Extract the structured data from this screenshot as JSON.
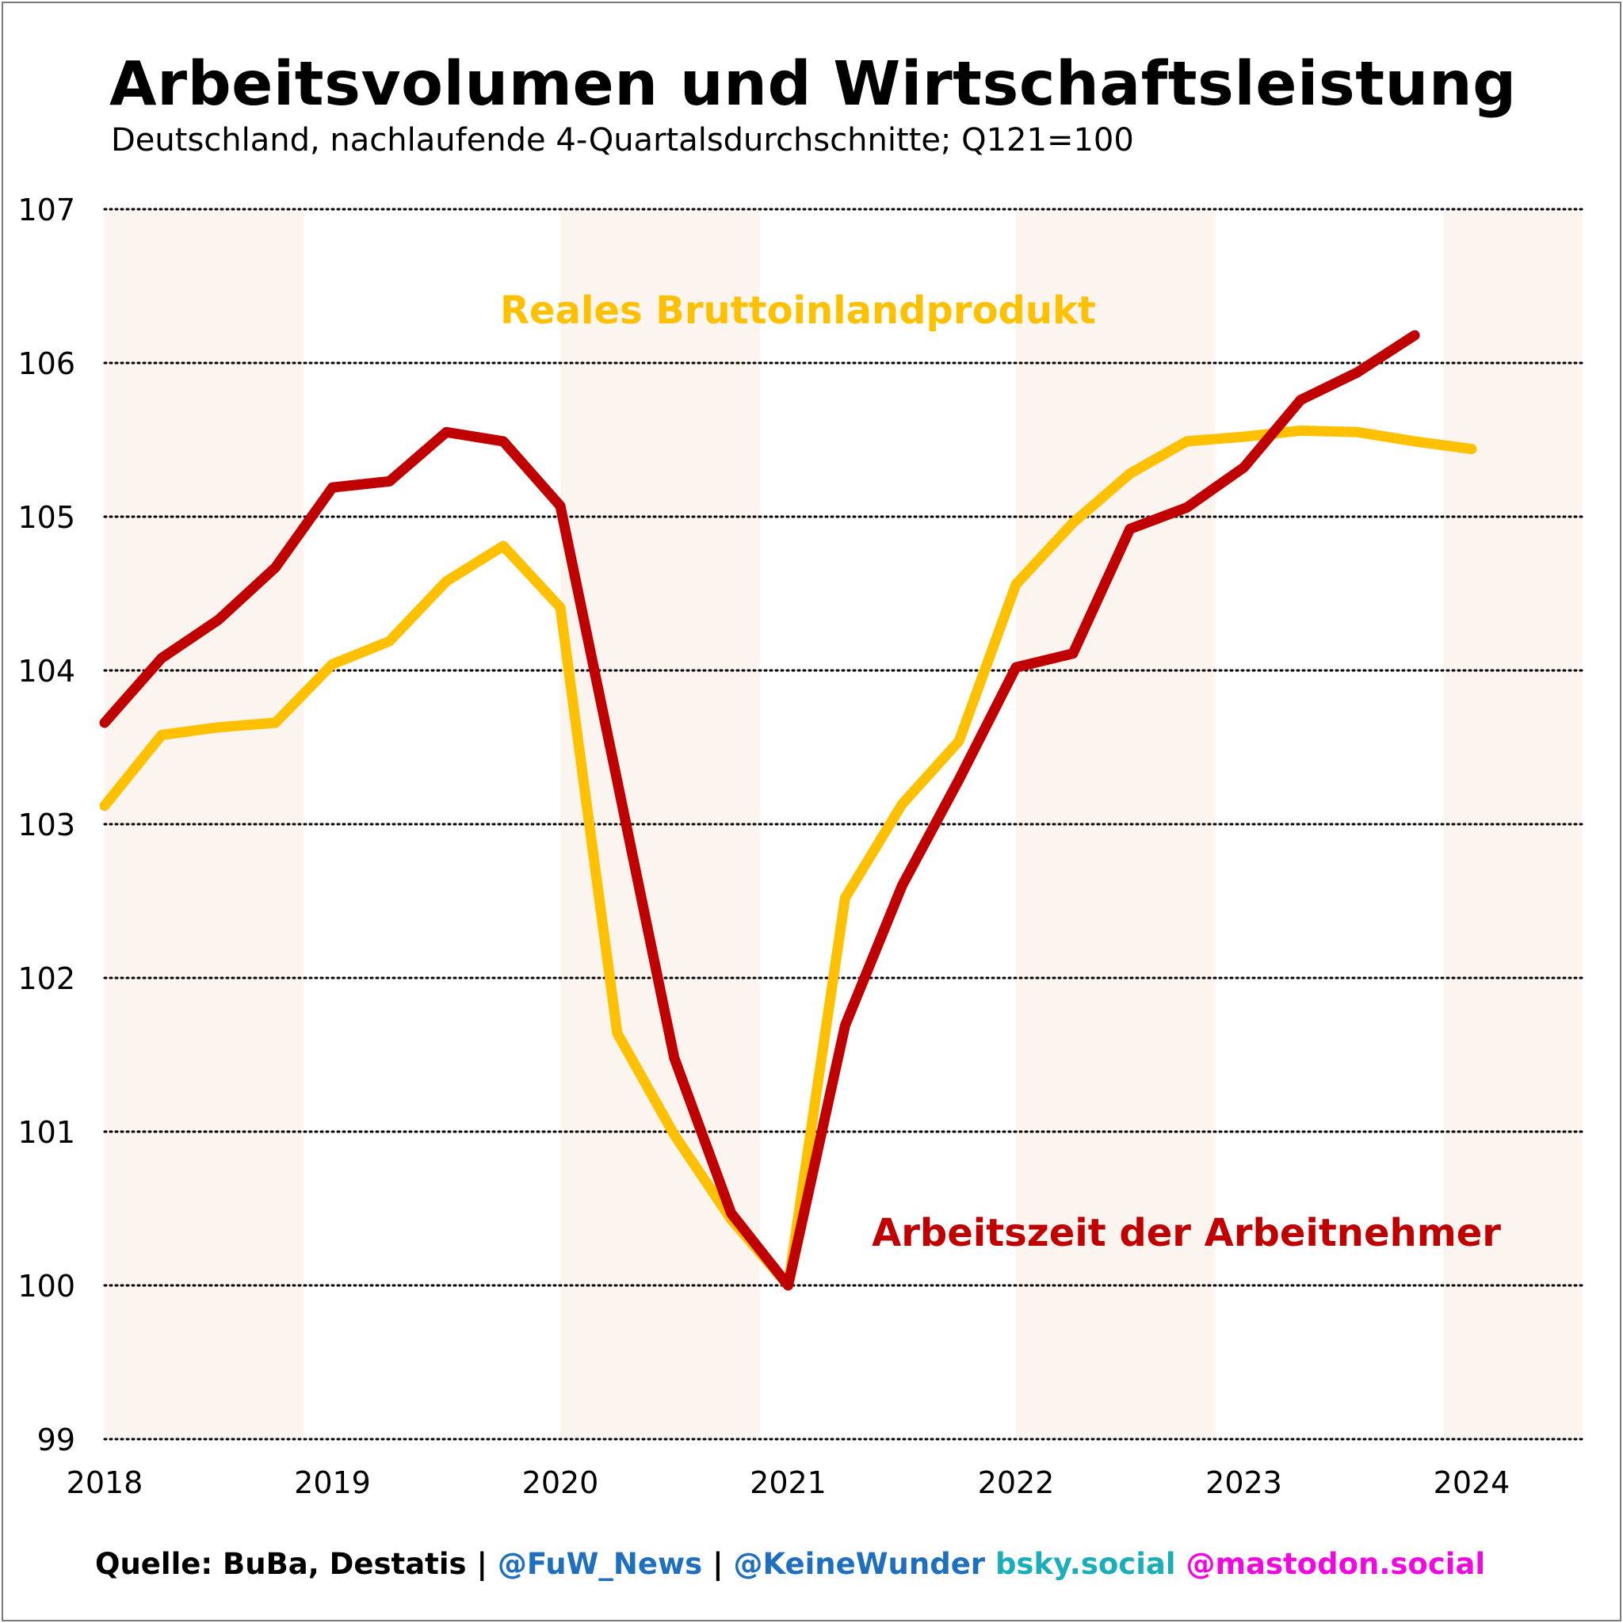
{
  "title": "Arbeitsvolumen und Wirtschaftsleistung",
  "subtitle": "Deutschland, nachlaufende 4-Quartalsdurchschnitte; Q121=100",
  "footer": {
    "source": "Quelle: BuBa, Destatis",
    "sep1": " | ",
    "handle1": "@FuW_News",
    "sep2": " | ",
    "handle2": "@KeineWunder",
    "space": " ",
    "bsky": "bsky.social",
    "space2": " ",
    "mastodon": "@mastodon.social"
  },
  "colors": {
    "gdp": "#FFC000",
    "hours": "#C00000",
    "band": "#FCF4EF",
    "handle": "#1F6FBF",
    "bsky": "#1AAFB8",
    "mastodon": "#F008E0"
  },
  "chart_data": {
    "type": "line",
    "x_axis": {
      "ticks": [
        "2018",
        "2019",
        "2020",
        "2021",
        "2022",
        "2023",
        "2024"
      ],
      "range": [
        2018.0,
        2024.5
      ]
    },
    "y_axis": {
      "ticks": [
        99,
        100,
        101,
        102,
        103,
        104,
        105,
        106,
        107
      ],
      "range": [
        99,
        107
      ]
    },
    "grid": "horizontal dotted",
    "background_bands": [
      [
        2018.0,
        2018.875
      ],
      [
        2020.0,
        2020.875
      ],
      [
        2022.0,
        2022.875
      ],
      [
        2023.875,
        2024.5
      ]
    ],
    "series": [
      {
        "name": "Reales Bruttoinlandprodukt",
        "color": "#FFC000",
        "x": [
          2018.0,
          2018.25,
          2018.5,
          2018.75,
          2019.0,
          2019.25,
          2019.5,
          2019.75,
          2020.0,
          2020.25,
          2020.5,
          2020.75,
          2021.0,
          2021.25,
          2021.5,
          2021.75,
          2022.0,
          2022.25,
          2022.5,
          2022.75,
          2023.0,
          2023.25,
          2023.5,
          2023.75,
          2024.0
        ],
        "y": [
          103.12,
          103.58,
          103.63,
          103.66,
          104.04,
          104.19,
          104.58,
          104.81,
          104.41,
          101.64,
          100.98,
          100.43,
          100.0,
          102.52,
          103.13,
          103.54,
          104.56,
          104.96,
          105.28,
          105.49,
          105.52,
          105.56,
          105.55,
          105.49,
          105.44
        ]
      },
      {
        "name": "Arbeitszeit der Arbeitnehmer",
        "color": "#C00000",
        "x": [
          2018.0,
          2018.25,
          2018.5,
          2018.75,
          2019.0,
          2019.25,
          2019.5,
          2019.75,
          2020.0,
          2020.25,
          2020.5,
          2020.75,
          2021.0,
          2021.25,
          2021.5,
          2021.75,
          2022.0,
          2022.25,
          2022.5,
          2022.75,
          2023.0,
          2023.25,
          2023.5,
          2023.75
        ],
        "y": [
          103.66,
          104.08,
          104.33,
          104.67,
          105.19,
          105.23,
          105.55,
          105.49,
          105.07,
          103.28,
          101.48,
          100.47,
          100.0,
          101.69,
          102.6,
          103.29,
          104.02,
          104.11,
          104.92,
          105.06,
          105.32,
          105.76,
          105.94,
          106.18
        ]
      }
    ],
    "annotations": [
      {
        "text": "Reales Bruttoinlandprodukt",
        "series": "Reales Bruttoinlandprodukt"
      },
      {
        "text": "Arbeitszeit der Arbeitnehmer",
        "series": "Arbeitszeit der Arbeitnehmer"
      }
    ]
  }
}
